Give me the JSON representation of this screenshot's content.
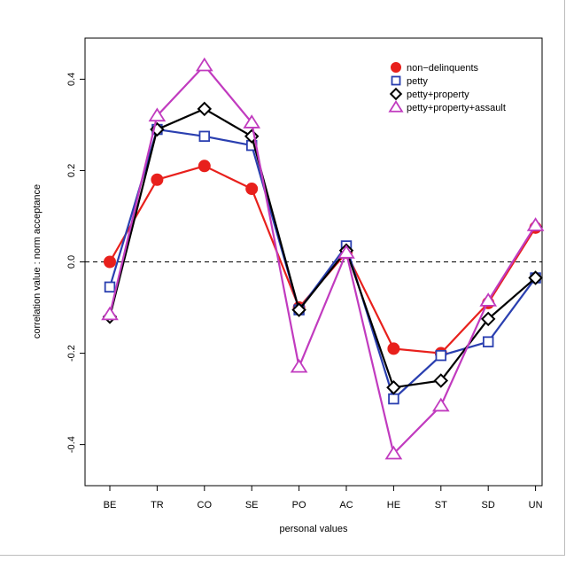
{
  "chart_data": {
    "type": "line",
    "xlabel": "personal values",
    "ylabel": "correlation value : norm acceptance",
    "categories": [
      "BE",
      "TR",
      "CO",
      "SE",
      "PO",
      "AC",
      "HE",
      "ST",
      "SD",
      "UN"
    ],
    "ylim": [
      -0.49,
      0.49
    ],
    "yticks": [
      -0.4,
      -0.2,
      0.0,
      0.2,
      0.4
    ],
    "ytick_labels": [
      "-0.4",
      "-0.2",
      "0.0",
      "0.2",
      "0.4"
    ],
    "reference_line": 0,
    "grid": false,
    "legend_position": "top-right",
    "series": [
      {
        "name": "non−delinquents",
        "color": "#e8201c",
        "marker": "circle",
        "values": [
          0.0,
          0.18,
          0.21,
          0.16,
          -0.1,
          0.02,
          -0.19,
          -0.2,
          -0.09,
          0.075
        ]
      },
      {
        "name": "petty",
        "color": "#2a3fb0",
        "marker": "square",
        "values": [
          -0.055,
          0.29,
          0.275,
          0.255,
          -0.105,
          0.035,
          -0.3,
          -0.205,
          -0.175,
          -0.035
        ]
      },
      {
        "name": "petty+property",
        "color": "#000000",
        "marker": "diamond",
        "values": [
          -0.12,
          0.29,
          0.335,
          0.275,
          -0.105,
          0.025,
          -0.275,
          -0.26,
          -0.125,
          -0.035
        ]
      },
      {
        "name": "petty+property+assault",
        "color": "#c13bbf",
        "marker": "triangle",
        "values": [
          -0.115,
          0.32,
          0.43,
          0.305,
          -0.23,
          0.02,
          -0.42,
          -0.315,
          -0.085,
          0.08
        ]
      }
    ]
  }
}
